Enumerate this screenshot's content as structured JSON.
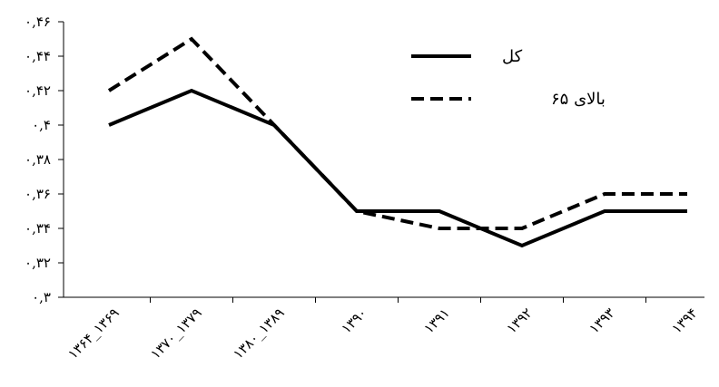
{
  "chart_data": {
    "type": "line",
    "title": "",
    "xlabel": "",
    "ylabel": "",
    "categories": [
      "۱۳۶۴_۱۳۶۹",
      "۱۳۷۰_۱۳۷۹",
      "۱۳۸۰_۱۳۸۹",
      "۱۳۹۰",
      "۱۳۹۱",
      "۱۳۹۲",
      "۱۳۹۳",
      "۱۳۹۴"
    ],
    "ylim": [
      0.3,
      0.46
    ],
    "yticks": [
      0.3,
      0.32,
      0.34,
      0.36,
      0.38,
      0.4,
      0.42,
      0.44,
      0.46
    ],
    "ytick_labels": [
      "۰,۳",
      "۰,۳۲",
      "۰,۳۴",
      "۰,۳۶",
      "۰,۳۸",
      "۰,۴",
      "۰,۴۲",
      "۰,۴۴",
      "۰,۴۶"
    ],
    "grid": false,
    "legend_position": "top-right",
    "series": [
      {
        "name": "کل",
        "style": "solid",
        "color": "#000000",
        "values": [
          0.4,
          0.42,
          0.4,
          0.35,
          0.35,
          0.33,
          0.35,
          0.35
        ]
      },
      {
        "name": "بالای ۶۵",
        "style": "dashed",
        "color": "#000000",
        "values": [
          0.42,
          0.45,
          0.4,
          0.35,
          0.34,
          0.34,
          0.36,
          0.36
        ]
      }
    ]
  }
}
